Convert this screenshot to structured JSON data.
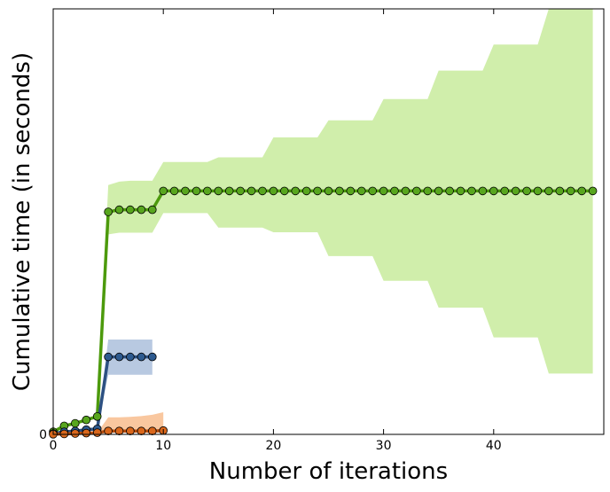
{
  "chart_data": {
    "type": "line",
    "title": "",
    "xlabel": "Number of iterations",
    "ylabel": "Cumulative time (in seconds)",
    "xlim": [
      0,
      50
    ],
    "ylim": [
      0,
      100
    ],
    "x_ticks": [
      0,
      10,
      20,
      30,
      40
    ],
    "y_ticks": [
      0
    ],
    "grid": false,
    "legend": "none",
    "series": [
      {
        "color": "#4c9a0c",
        "band_color": "#d0eeab",
        "marker_color": "#58a61e",
        "x": [
          0,
          1,
          2,
          3,
          4,
          5,
          6,
          7,
          8,
          9,
          10,
          11,
          12,
          13,
          14,
          15,
          16,
          17,
          18,
          19,
          20,
          21,
          22,
          23,
          24,
          25,
          26,
          27,
          28,
          29,
          30,
          31,
          32,
          33,
          34,
          35,
          36,
          37,
          38,
          39,
          40,
          41,
          42,
          43,
          44,
          45,
          46,
          47,
          48,
          49
        ],
        "values": [
          0.6,
          2,
          2.6,
          3.4,
          4.2,
          52.3,
          52.8,
          52.8,
          52.8,
          52.8,
          57.2,
          57.2,
          57.2,
          57.2,
          57.2,
          57.2,
          57.2,
          57.2,
          57.2,
          57.2,
          57.2,
          57.2,
          57.2,
          57.2,
          57.2,
          57.2,
          57.2,
          57.2,
          57.2,
          57.2,
          57.2,
          57.2,
          57.2,
          57.2,
          57.2,
          57.2,
          57.2,
          57.2,
          57.2,
          57.2,
          57.2,
          57.2,
          57.2,
          57.2,
          57.2,
          57.2,
          57.2,
          57.2,
          57.2,
          57.2
        ],
        "band": {
          "x": [
            0,
            1,
            2,
            3,
            4,
            5,
            6,
            7,
            8,
            9,
            10,
            11,
            12,
            13,
            14,
            15,
            16,
            17,
            18,
            19,
            20,
            21,
            22,
            23,
            24,
            25,
            26,
            27,
            28,
            29,
            30,
            31,
            32,
            33,
            34,
            35,
            36,
            37,
            38,
            39,
            40,
            41,
            42,
            43,
            44,
            45,
            46,
            47,
            48,
            49
          ],
          "upper": [
            0.6,
            2,
            2.6,
            3.4,
            4.2,
            58.6,
            59.4,
            59.6,
            59.6,
            59.6,
            64,
            64,
            64,
            64,
            64,
            65.1,
            65.1,
            65.1,
            65.1,
            65.1,
            69.8,
            69.8,
            69.8,
            69.8,
            69.8,
            73.8,
            73.8,
            73.8,
            73.8,
            73.8,
            78.8,
            78.8,
            78.8,
            78.8,
            78.8,
            85.5,
            85.5,
            85.5,
            85.5,
            85.5,
            91.6,
            91.6,
            91.6,
            91.6,
            91.6,
            100,
            100,
            100,
            100,
            100
          ],
          "lower": [
            0.6,
            2,
            2.6,
            3.4,
            4.2,
            47,
            47.4,
            47.4,
            47.4,
            47.4,
            52,
            52,
            52,
            52,
            52,
            48.6,
            48.6,
            48.6,
            48.6,
            48.6,
            47.5,
            47.5,
            47.5,
            47.5,
            47.5,
            41.9,
            41.9,
            41.9,
            41.9,
            41.9,
            36.1,
            36.1,
            36.1,
            36.1,
            36.1,
            29.8,
            29.8,
            29.8,
            29.8,
            29.8,
            22.8,
            22.8,
            22.8,
            22.8,
            22.8,
            14.3,
            14.3,
            14.3,
            14.3,
            14.3
          ]
        }
      },
      {
        "color": "#2c5081",
        "band_color": "#b8c9e1",
        "marker_color": "#2d5a8f",
        "x": [
          0,
          1,
          2,
          3,
          4,
          5,
          6,
          7,
          8,
          9
        ],
        "values": [
          0.2,
          0.6,
          0.8,
          1.1,
          1.3,
          18.2,
          18.2,
          18.2,
          18.2,
          18.2
        ],
        "band": {
          "x": [
            0,
            1,
            2,
            3,
            4,
            5,
            6,
            7,
            8,
            9
          ],
          "upper": [
            0.2,
            0.6,
            0.8,
            1.1,
            1.3,
            22.3,
            22.3,
            22.3,
            22.3,
            22.3
          ],
          "lower": [
            0.2,
            0.6,
            0.8,
            1.1,
            1.3,
            14,
            14,
            14,
            14,
            14
          ]
        }
      },
      {
        "color": "#b84d0c",
        "band_color": "#f9c79f",
        "marker_color": "#d9671c",
        "x": [
          0,
          1,
          2,
          3,
          4,
          5,
          6,
          7,
          8,
          9,
          10
        ],
        "values": [
          0.05,
          0.1,
          0.2,
          0.3,
          0.4,
          0.8,
          0.8,
          0.8,
          0.8,
          0.8,
          0.9
        ],
        "band": {
          "x": [
            0,
            1,
            2,
            3,
            4,
            5,
            6,
            7,
            8,
            9,
            10
          ],
          "upper": [
            0.05,
            0.1,
            0.2,
            0.3,
            0.4,
            4,
            4,
            4.1,
            4.3,
            4.6,
            5.2
          ],
          "lower": [
            0.05,
            0.1,
            0.2,
            0.3,
            0.4,
            0.4,
            0.4,
            0.4,
            0.4,
            0.4,
            0.4
          ]
        }
      }
    ]
  }
}
